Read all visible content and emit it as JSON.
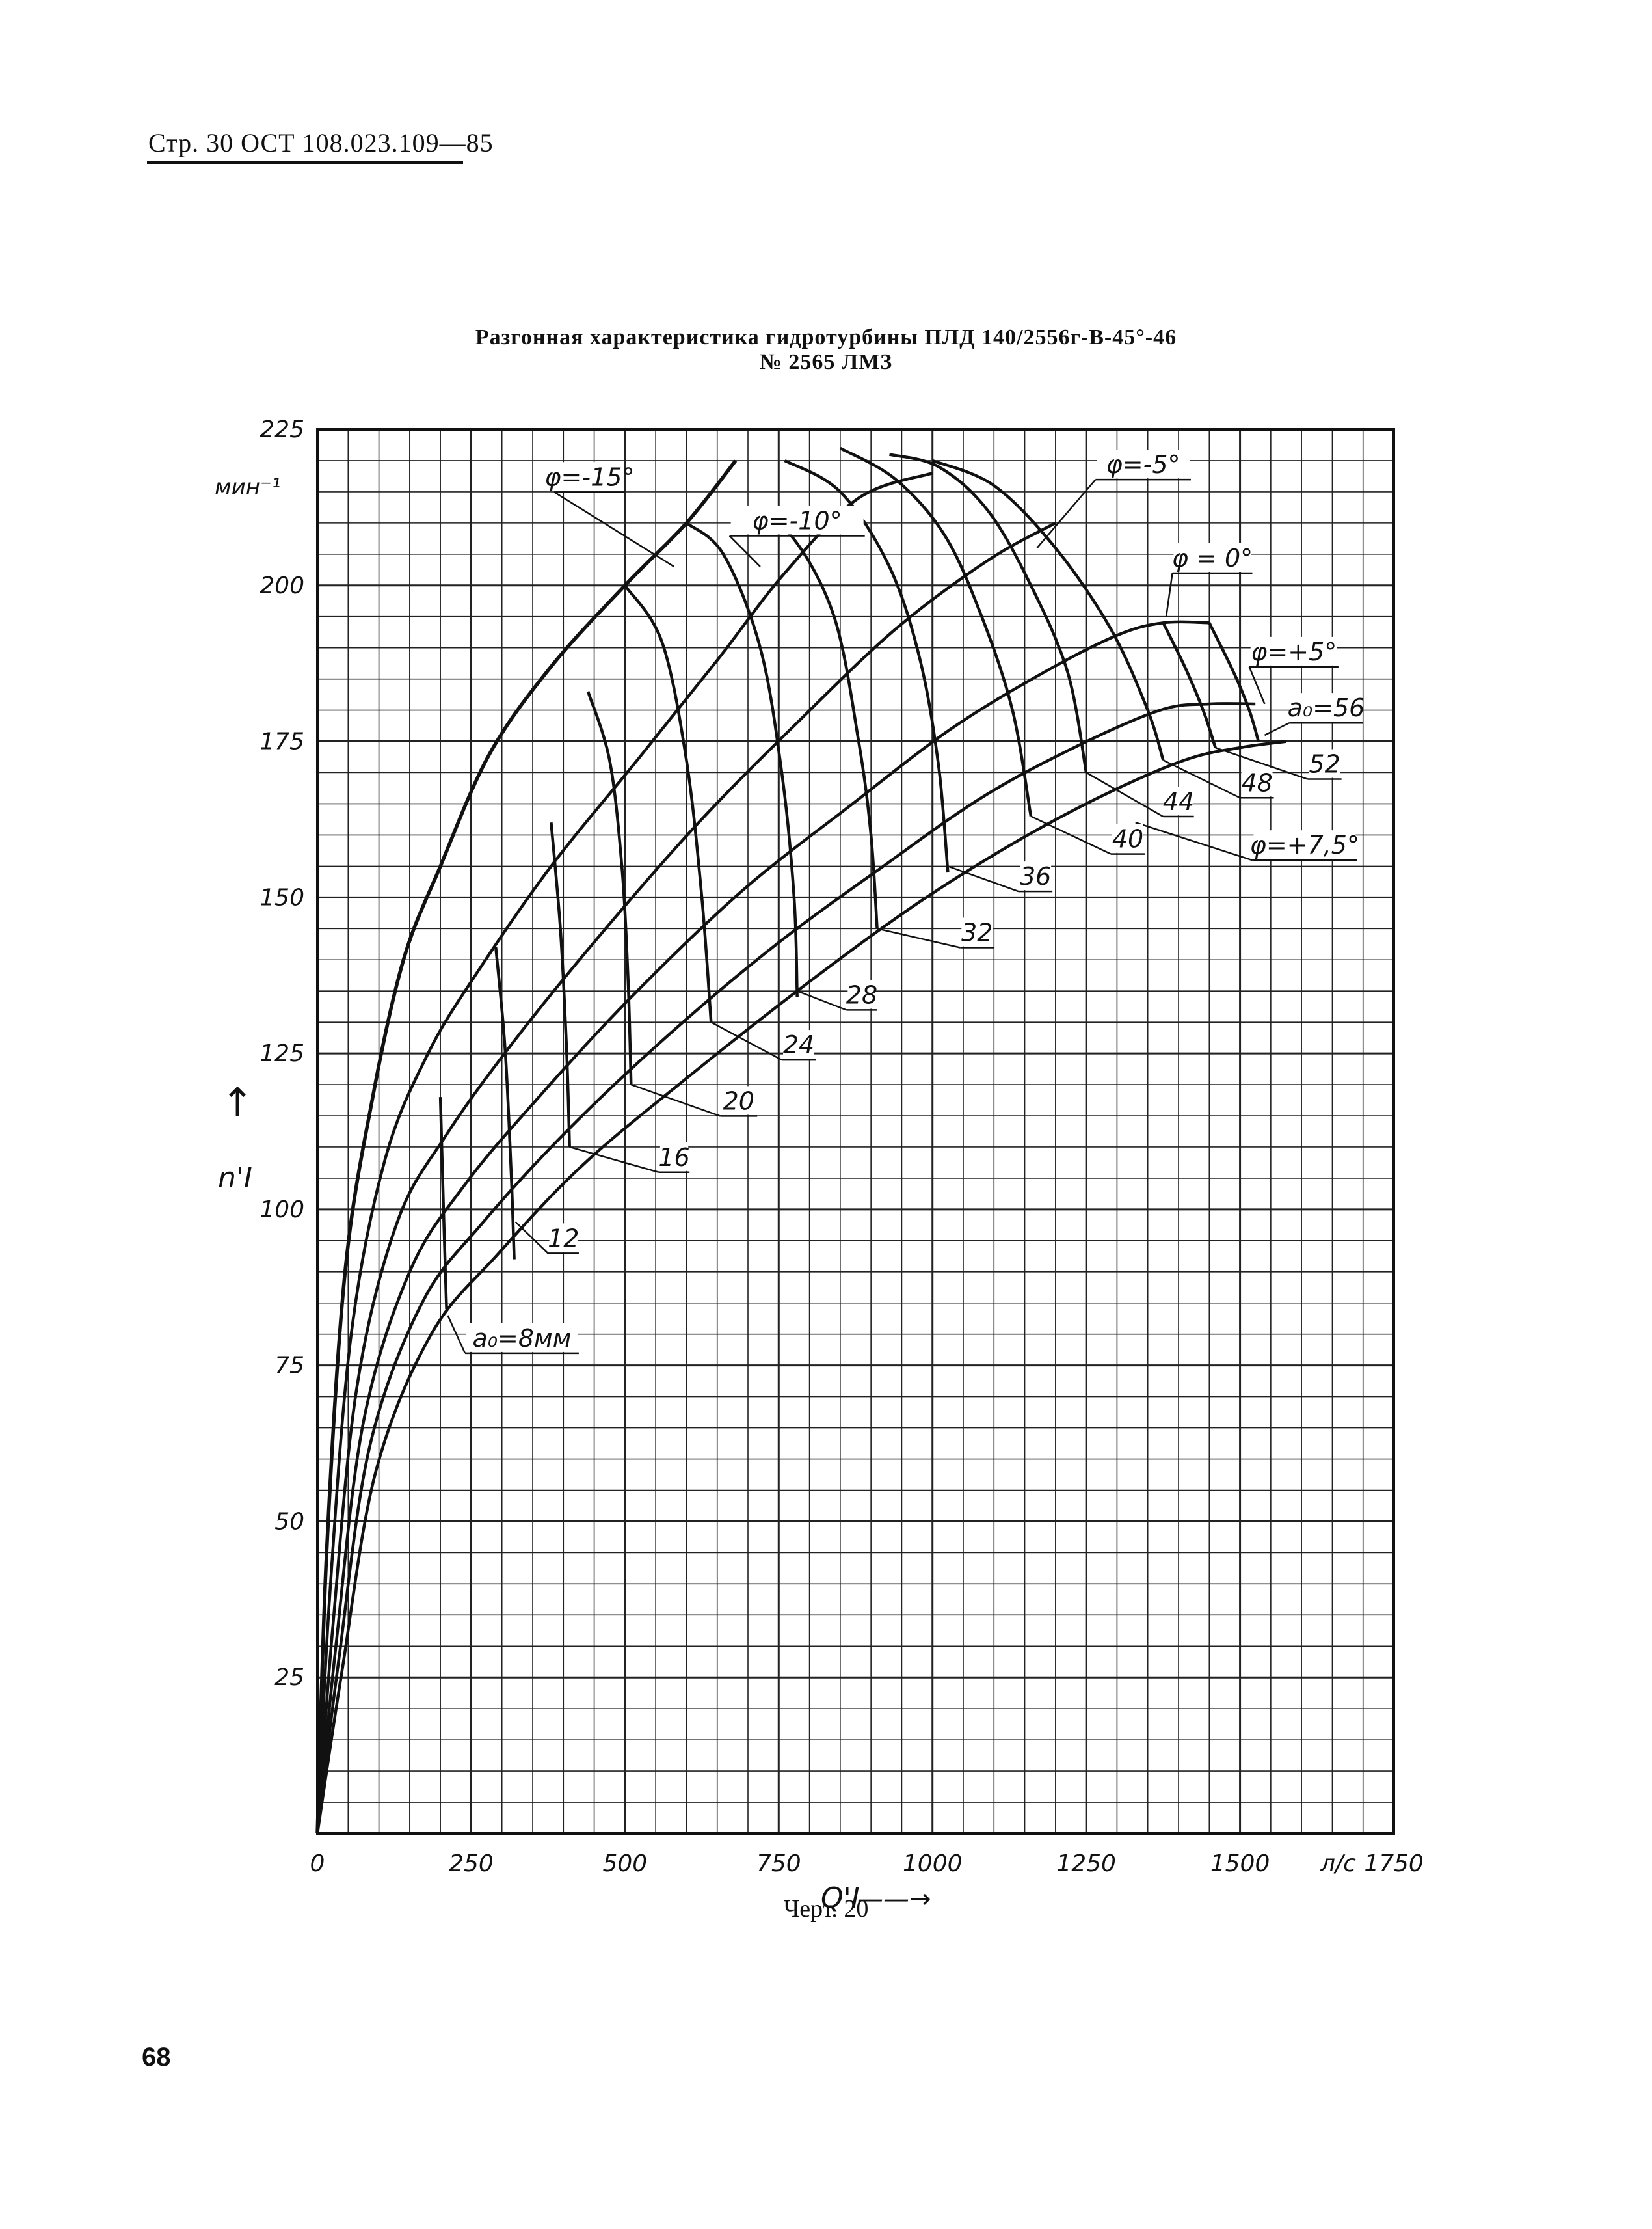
{
  "header": {
    "text": "Стр. 30 ОСТ 108.023.109—85"
  },
  "title": {
    "line1": "Разгонная характеристика гидротурбины ПЛД 140/2556г-В-45°-46",
    "line2": "№ 2565 ЛМЗ"
  },
  "caption": "Черт. 20",
  "page_number": "68",
  "chart_data": {
    "type": "line",
    "title": "Разгонная характеристика гидротурбины ПЛД 140/2556г-В-45°-46 № 2565 ЛМЗ",
    "x_axis": {
      "label": "Q'I",
      "unit": "л/с",
      "range": [
        0,
        1750
      ],
      "ticks": [
        0,
        250,
        500,
        750,
        1000,
        1250,
        1500,
        1750
      ],
      "tick_labels": [
        "0",
        "250",
        "500",
        "750",
        "1000",
        "1250",
        "1500",
        "1750"
      ]
    },
    "y_axis": {
      "label": "n'I",
      "unit": "мин-1",
      "range": [
        0,
        225
      ],
      "ticks": [
        0,
        25,
        50,
        75,
        100,
        125,
        150,
        175,
        200,
        225
      ],
      "tick_labels": [
        "0",
        "25",
        "50",
        "75",
        "100",
        "125",
        "150",
        "175",
        "200",
        "225"
      ]
    },
    "grid": true,
    "blade_angle_curves": [
      {
        "name": "φ=-15°",
        "points": [
          [
            0,
            0
          ],
          [
            15,
            45
          ],
          [
            45,
            90
          ],
          [
            90,
            118
          ],
          [
            140,
            140
          ],
          [
            200,
            155
          ],
          [
            280,
            173
          ],
          [
            380,
            187
          ],
          [
            500,
            200
          ],
          [
            600,
            210
          ],
          [
            680,
            220
          ]
        ]
      },
      {
        "name": "φ=-10°",
        "points": [
          [
            0,
            0
          ],
          [
            20,
            38
          ],
          [
            55,
            80
          ],
          [
            110,
            108
          ],
          [
            180,
            125
          ],
          [
            260,
            138
          ],
          [
            380,
            155
          ],
          [
            520,
            172
          ],
          [
            650,
            188
          ],
          [
            760,
            202
          ],
          [
            880,
            214
          ],
          [
            1000,
            218
          ]
        ]
      },
      {
        "name": "φ=-5°",
        "points": [
          [
            0,
            0
          ],
          [
            25,
            33
          ],
          [
            65,
            72
          ],
          [
            130,
            98
          ],
          [
            210,
            112
          ],
          [
            320,
            127
          ],
          [
            460,
            144
          ],
          [
            620,
            162
          ],
          [
            780,
            178
          ],
          [
            940,
            193
          ],
          [
            1090,
            204
          ],
          [
            1200,
            210
          ]
        ]
      },
      {
        "name": "φ=0°",
        "points": [
          [
            0,
            0
          ],
          [
            30,
            30
          ],
          [
            75,
            66
          ],
          [
            150,
            90
          ],
          [
            240,
            104
          ],
          [
            360,
            118
          ],
          [
            510,
            134
          ],
          [
            690,
            151
          ],
          [
            870,
            165
          ],
          [
            1030,
            177
          ],
          [
            1180,
            186
          ],
          [
            1300,
            192
          ],
          [
            1375,
            194
          ],
          [
            1450,
            194
          ]
        ]
      },
      {
        "name": "φ=+5°",
        "points": [
          [
            0,
            0
          ],
          [
            35,
            28
          ],
          [
            85,
            62
          ],
          [
            170,
            85
          ],
          [
            270,
            98
          ],
          [
            400,
            112
          ],
          [
            560,
            127
          ],
          [
            740,
            142
          ],
          [
            920,
            155
          ],
          [
            1080,
            166
          ],
          [
            1230,
            174
          ],
          [
            1370,
            180
          ],
          [
            1450,
            181
          ],
          [
            1525,
            181
          ]
        ]
      },
      {
        "name": "φ=+7,5°",
        "points": [
          [
            0,
            0
          ],
          [
            40,
            26
          ],
          [
            95,
            58
          ],
          [
            185,
            80
          ],
          [
            295,
            93
          ],
          [
            430,
            107
          ],
          [
            600,
            121
          ],
          [
            780,
            135
          ],
          [
            960,
            148
          ],
          [
            1120,
            158
          ],
          [
            1270,
            166
          ],
          [
            1410,
            172
          ],
          [
            1500,
            174
          ],
          [
            1575,
            175
          ]
        ]
      }
    ],
    "opening_curves": [
      {
        "name": "8",
        "points": [
          [
            200,
            118
          ],
          [
            205,
            100
          ],
          [
            210,
            84
          ]
        ]
      },
      {
        "name": "12",
        "points": [
          [
            290,
            142
          ],
          [
            305,
            126
          ],
          [
            315,
            106
          ],
          [
            320,
            92
          ]
        ]
      },
      {
        "name": "16",
        "points": [
          [
            380,
            162
          ],
          [
            395,
            145
          ],
          [
            405,
            126
          ],
          [
            410,
            110
          ]
        ]
      },
      {
        "name": "20",
        "points": [
          [
            440,
            183
          ],
          [
            475,
            172
          ],
          [
            495,
            155
          ],
          [
            505,
            137
          ],
          [
            510,
            120
          ]
        ]
      },
      {
        "name": "24",
        "points": [
          [
            500,
            200
          ],
          [
            560,
            191
          ],
          [
            600,
            172
          ],
          [
            625,
            150
          ],
          [
            640,
            130
          ]
        ]
      },
      {
        "name": "28",
        "points": [
          [
            600,
            210
          ],
          [
            660,
            205
          ],
          [
            720,
            190
          ],
          [
            755,
            170
          ],
          [
            775,
            150
          ],
          [
            780,
            134
          ]
        ]
      },
      {
        "name": "32",
        "points": [
          [
            700,
            212
          ],
          [
            770,
            208
          ],
          [
            840,
            195
          ],
          [
            880,
            175
          ],
          [
            900,
            160
          ],
          [
            910,
            145
          ]
        ]
      },
      {
        "name": "36",
        "points": [
          [
            760,
            220
          ],
          [
            850,
            215
          ],
          [
            930,
            203
          ],
          [
            980,
            188
          ],
          [
            1010,
            171
          ],
          [
            1025,
            154
          ]
        ]
      },
      {
        "name": "40",
        "points": [
          [
            850,
            222
          ],
          [
            940,
            217
          ],
          [
            1020,
            208
          ],
          [
            1080,
            195
          ],
          [
            1130,
            180
          ],
          [
            1160,
            163
          ]
        ]
      },
      {
        "name": "44",
        "points": [
          [
            930,
            221
          ],
          [
            1010,
            219
          ],
          [
            1090,
            212
          ],
          [
            1160,
            200
          ],
          [
            1220,
            186
          ],
          [
            1250,
            170
          ]
        ]
      },
      {
        "name": "48",
        "points": [
          [
            1000,
            220
          ],
          [
            1100,
            216
          ],
          [
            1200,
            206
          ],
          [
            1290,
            193
          ],
          [
            1350,
            180
          ],
          [
            1375,
            172
          ]
        ]
      },
      {
        "name": "52",
        "points": [
          [
            1375,
            194
          ],
          [
            1410,
            187
          ],
          [
            1440,
            180
          ],
          [
            1460,
            174
          ]
        ]
      },
      {
        "name": "56",
        "points": [
          [
            1450,
            194
          ],
          [
            1490,
            186
          ],
          [
            1515,
            180
          ],
          [
            1530,
            175
          ]
        ]
      }
    ],
    "annotations": {
      "phi_minus15": "φ=-15°",
      "phi_minus10": "φ=-10°",
      "phi_minus5": "φ=-5°",
      "phi_0": "φ = 0°",
      "phi_plus5": "φ=+5°",
      "phi_plus7_5": "φ=+7,5°",
      "a0_8": "a₀=8мм",
      "a0_56": "a₀=56",
      "lbl_12": "12",
      "lbl_16": "16",
      "lbl_20": "20",
      "lbl_24": "24",
      "lbl_28": "28",
      "lbl_32": "32",
      "lbl_36": "36",
      "lbl_40": "40",
      "lbl_44": "44",
      "lbl_48": "48",
      "lbl_52": "52"
    },
    "axis_text": {
      "y_unit": "мин⁻¹",
      "y_name": "n'I",
      "x_name": "Q'I",
      "x_unit": "л/с",
      "x_arrow": "——→",
      "y_arrow": "↑"
    }
  }
}
